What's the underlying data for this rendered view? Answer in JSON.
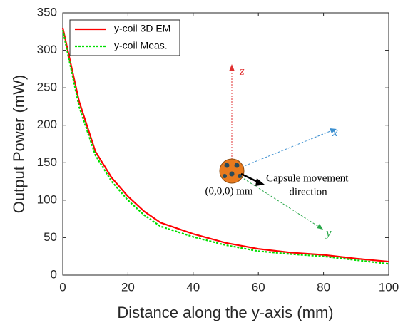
{
  "chart_data": {
    "type": "line",
    "x_label": "Distance along the  y-axis (mm)",
    "y_label": "Output Power (mW)",
    "x": [
      0,
      5,
      10,
      15,
      20,
      25,
      30,
      40,
      50,
      60,
      70,
      80,
      90,
      100
    ],
    "series": [
      {
        "name": "y-coil 3D EM",
        "color": "#ff0000",
        "dash": "solid",
        "values": [
          330,
          232,
          165,
          130,
          105,
          85,
          70,
          55,
          43,
          35,
          30,
          27,
          22,
          18
        ]
      },
      {
        "name": "y-coil Meas.",
        "color": "#00dd00",
        "dash": "dotted",
        "values": [
          327,
          225,
          160,
          125,
          100,
          80,
          65,
          51,
          40,
          32,
          28,
          25,
          20,
          15
        ]
      }
    ],
    "xlim": [
      0,
      100
    ],
    "xticks": [
      0,
      20,
      40,
      60,
      80,
      100
    ],
    "ylim": [
      0,
      350
    ],
    "yticks": [
      0,
      50,
      100,
      150,
      200,
      250,
      300,
      350
    ],
    "grid": false,
    "legend": "upper left",
    "annotations": {
      "z_axis": "z",
      "x_axis": "x",
      "y_axis": "y",
      "origin": "(0,0,0) mm",
      "movement_1": "Capsule movement",
      "movement_2": "direction"
    }
  }
}
